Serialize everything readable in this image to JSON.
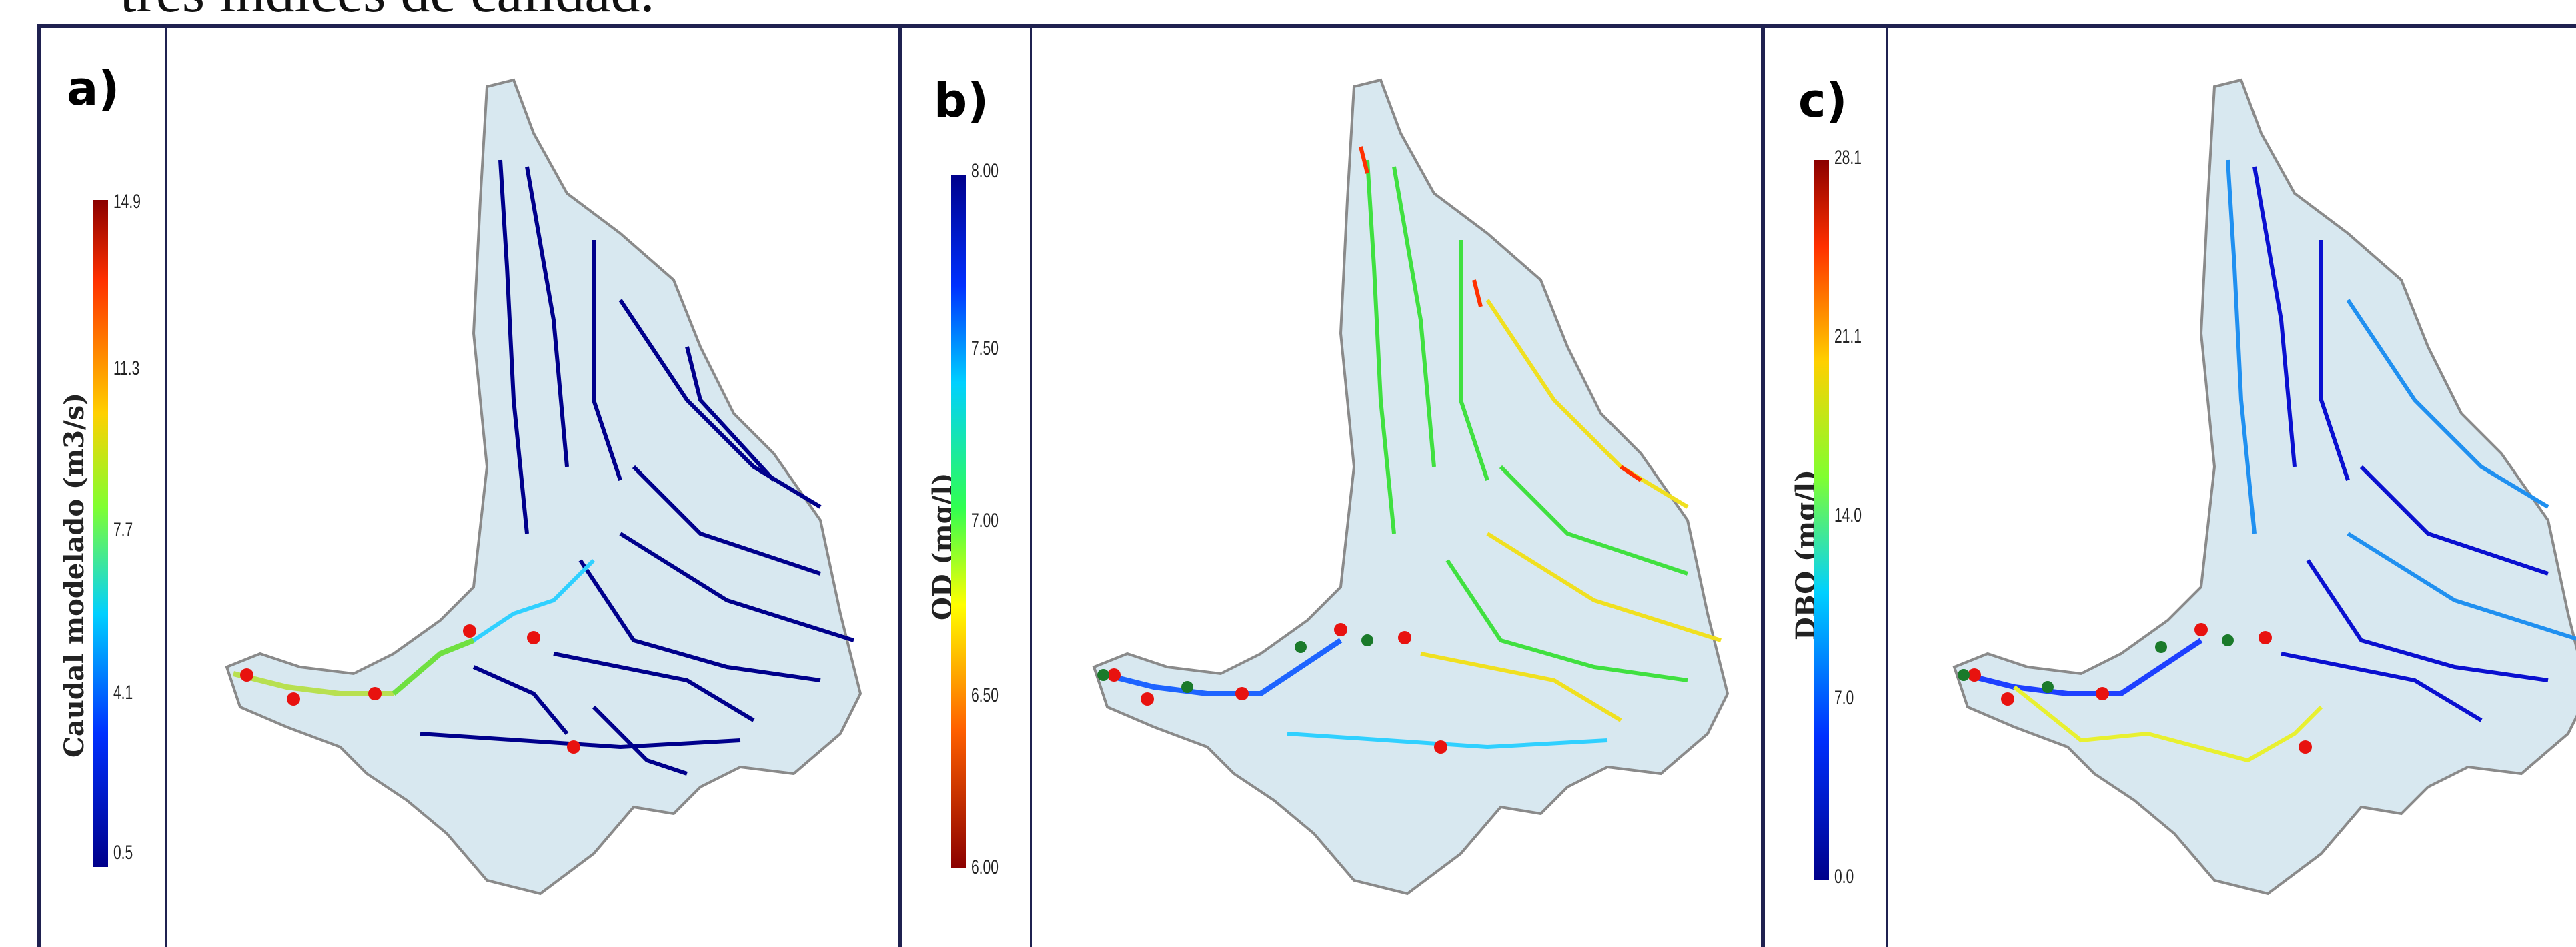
{
  "caption": "tres índices de calidad.",
  "panels": [
    {
      "letter": "a)",
      "colorbar_label": "Caudal modelado (m3/s)",
      "ticks": [
        "14.9",
        "11.3",
        "7.7",
        "4.1",
        "0.5"
      ]
    },
    {
      "letter": "b)",
      "colorbar_label": "OD (mg/l)",
      "ticks": [
        "8.00",
        "7.50",
        "7.00",
        "6.50",
        "6.00"
      ]
    },
    {
      "letter": "c)",
      "colorbar_label": "DBO (mg/l)",
      "ticks": [
        "28.1",
        "21.1",
        "14.0",
        "7.0",
        "0.0"
      ]
    }
  ],
  "colors": {
    "frame": "#1f2150",
    "basin_fill": "#d8e8f0",
    "basin_edge": "#8a8a8a",
    "low": "#00008b",
    "mid_low": "#1e64ff",
    "mid": "#22e070",
    "mid_high": "#f6e81a",
    "high": "#e0100c",
    "marker_red": "#e8120f",
    "marker_green": "#1a7a2a"
  },
  "scale_a": [
    "#00008b",
    "#0030ff",
    "#00d0ff",
    "#30ff50",
    "#ffff00",
    "#ff6000",
    "#8b0000"
  ],
  "scale_b": [
    "#00008b",
    "#0030ff",
    "#00d0ff",
    "#30ff50",
    "#ffff00",
    "#ff6000",
    "#8b0000"
  ],
  "scale_c": [
    "#00008b",
    "#0030ff",
    "#00d0ff",
    "#30ff50",
    "#ffff00",
    "#ff6000",
    "#8b0000"
  ]
}
